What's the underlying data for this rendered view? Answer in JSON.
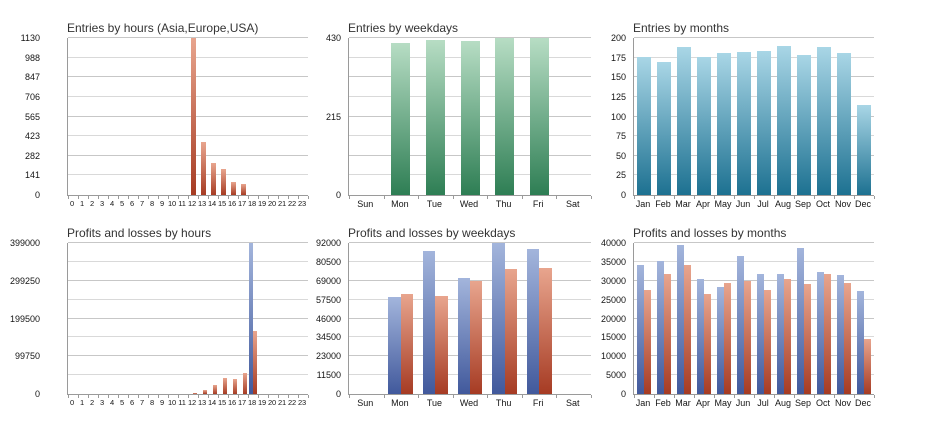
{
  "page": {
    "background": "#ffffff"
  },
  "palettes": {
    "red": {
      "top": "#e8a58e",
      "bottom": "#a63b23"
    },
    "green": {
      "top": "#b7ddc4",
      "bottom": "#2e7e54"
    },
    "teal": {
      "top": "#a9d6e6",
      "bottom": "#1d7191"
    },
    "blue": {
      "top": "#a3b5dc",
      "bottom": "#41599c"
    }
  },
  "grid_color": "#c7c7c7",
  "axis_color": "#9a9a9a",
  "chart_data": [
    {
      "type": "bar",
      "title": "Entries by hours (Asia,Europe,USA)",
      "categories": [
        "0",
        "1",
        "2",
        "3",
        "4",
        "5",
        "6",
        "7",
        "8",
        "9",
        "10",
        "11",
        "12",
        "13",
        "14",
        "15",
        "16",
        "17",
        "18",
        "19",
        "20",
        "21",
        "22",
        "23"
      ],
      "series": [
        {
          "name": "entries",
          "palette": "red",
          "values": [
            0,
            0,
            0,
            0,
            0,
            0,
            0,
            0,
            0,
            0,
            0,
            0,
            1130,
            378,
            229,
            189,
            92,
            82,
            0,
            0,
            0,
            0,
            0,
            0
          ]
        }
      ],
      "ymax": 1130,
      "ytick_labels_bottom_up": [
        "0",
        "141",
        "282",
        "423",
        "565",
        "706",
        "847",
        "988",
        "1130"
      ],
      "grid": true,
      "legend": "none",
      "bar_pct": 0.5,
      "dense": true
    },
    {
      "type": "bar",
      "title": "Entries by weekdays",
      "categories": [
        "Sun",
        "Mon",
        "Tue",
        "Wed",
        "Thu",
        "Fri",
        "Sat"
      ],
      "series": [
        {
          "name": "entries",
          "palette": "green",
          "values": [
            0,
            415,
            424,
            421,
            430,
            429,
            0
          ]
        }
      ],
      "ymax": 430,
      "ytick_labels_bottom_up": [
        "0",
        "",
        "",
        "",
        "215",
        "",
        "",
        "",
        "430"
      ],
      "grid": true,
      "legend": "none",
      "bar_pct": 0.55,
      "dense": false
    },
    {
      "type": "bar",
      "title": "Entries by months",
      "categories": [
        "Jan",
        "Feb",
        "Mar",
        "Apr",
        "May",
        "Jun",
        "Jul",
        "Aug",
        "Sep",
        "Oct",
        "Nov",
        "Dec"
      ],
      "series": [
        {
          "name": "entries",
          "palette": "teal",
          "values": [
            176,
            170,
            189,
            176,
            181,
            182,
            184,
            190,
            178,
            188,
            181,
            115
          ]
        }
      ],
      "ymax": 200,
      "ytick_labels_bottom_up": [
        "0",
        "25",
        "50",
        "75",
        "100",
        "125",
        "150",
        "175",
        "200"
      ],
      "grid": true,
      "legend": "none",
      "bar_pct": 0.68,
      "dense": false
    },
    {
      "type": "bar",
      "title": "Profits and losses by hours",
      "categories": [
        "0",
        "1",
        "2",
        "3",
        "4",
        "5",
        "6",
        "7",
        "8",
        "9",
        "10",
        "11",
        "12",
        "13",
        "14",
        "15",
        "16",
        "17",
        "18",
        "19",
        "20",
        "21",
        "22",
        "23"
      ],
      "series": [
        {
          "name": "profits",
          "palette": "blue",
          "values": [
            0,
            0,
            0,
            0,
            0,
            0,
            0,
            0,
            0,
            0,
            0,
            0,
            0,
            0,
            0,
            0,
            0,
            0,
            399000,
            0,
            0,
            0,
            0,
            0
          ]
        },
        {
          "name": "losses",
          "palette": "red",
          "values": [
            0,
            0,
            0,
            0,
            0,
            0,
            0,
            0,
            0,
            0,
            0,
            0,
            3000,
            11000,
            24000,
            42000,
            39500,
            55000,
            167000,
            0,
            0,
            0,
            0,
            0
          ]
        }
      ],
      "ymax": 399000,
      "ytick_labels_bottom_up": [
        "0",
        "",
        "99750",
        "",
        "199500",
        "",
        "299250",
        "",
        "399000"
      ],
      "grid": true,
      "legend": "none",
      "bar_pct": 0.42,
      "dense": true
    },
    {
      "type": "bar",
      "title": "Profits and losses by weekdays",
      "categories": [
        "Sun",
        "Mon",
        "Tue",
        "Wed",
        "Thu",
        "Fri",
        "Sat"
      ],
      "series": [
        {
          "name": "profits",
          "palette": "blue",
          "values": [
            0,
            59000,
            87000,
            70500,
            92000,
            88500,
            0
          ]
        },
        {
          "name": "losses",
          "palette": "red",
          "values": [
            0,
            61000,
            60000,
            69000,
            76000,
            76500,
            0
          ]
        }
      ],
      "ymax": 92000,
      "ytick_labels_bottom_up": [
        "0",
        "11500",
        "23000",
        "34500",
        "46000",
        "57500",
        "69000",
        "80500",
        "92000"
      ],
      "grid": true,
      "legend": "none",
      "bar_pct": 0.36,
      "dense": false
    },
    {
      "type": "bar",
      "title": "Profits and losses by months",
      "categories": [
        "Jan",
        "Feb",
        "Mar",
        "Apr",
        "May",
        "Jun",
        "Jul",
        "Aug",
        "Sep",
        "Oct",
        "Nov",
        "Dec"
      ],
      "series": [
        {
          "name": "profits",
          "palette": "blue",
          "values": [
            34300,
            35300,
            39600,
            30400,
            28300,
            36500,
            31700,
            31700,
            38700,
            32400,
            31400,
            27200
          ]
        },
        {
          "name": "losses",
          "palette": "red",
          "values": [
            27500,
            31900,
            34300,
            26400,
            29300,
            30000,
            27600,
            30500,
            29100,
            31800,
            29500,
            14700
          ]
        }
      ],
      "ymax": 40000,
      "ytick_labels_bottom_up": [
        "0",
        "5000",
        "10000",
        "15000",
        "20000",
        "25000",
        "30000",
        "35000",
        "40000"
      ],
      "grid": true,
      "legend": "none",
      "bar_pct": 0.35,
      "dense": false
    }
  ]
}
